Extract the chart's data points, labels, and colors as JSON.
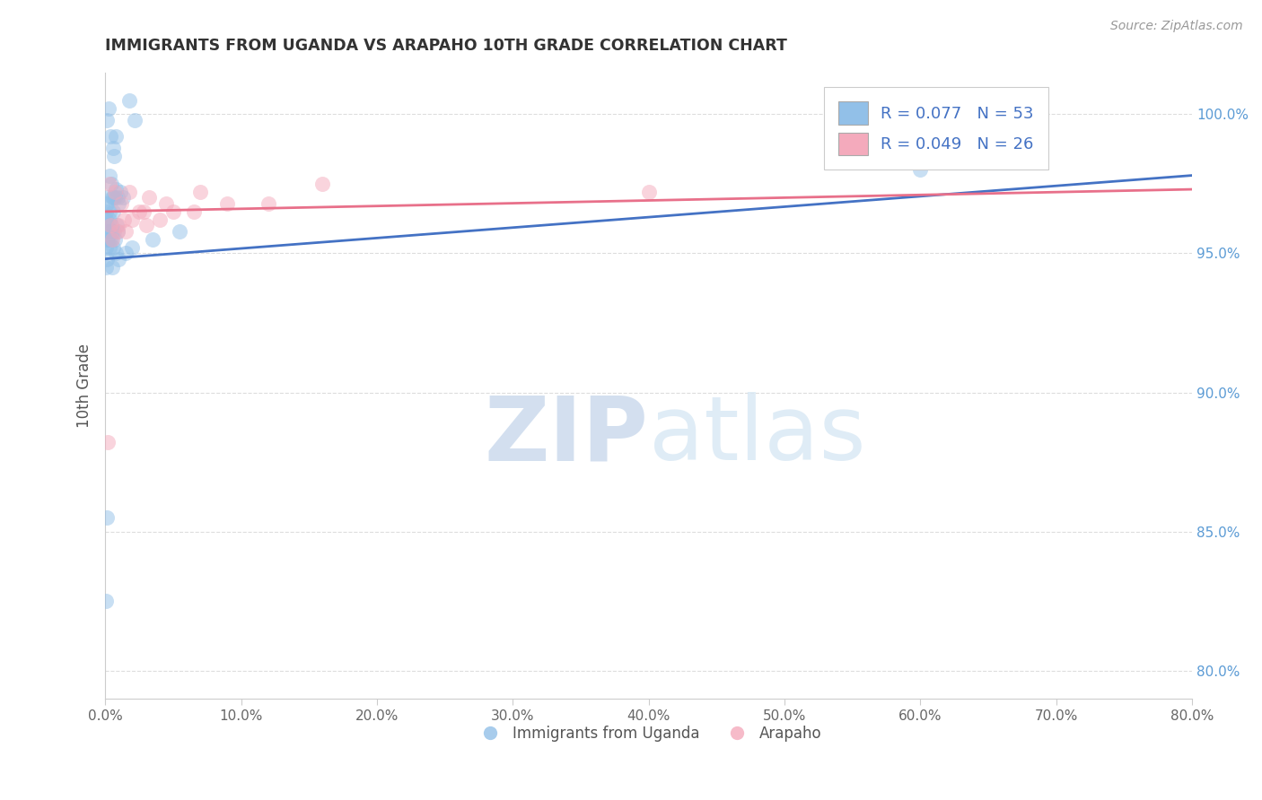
{
  "title": "IMMIGRANTS FROM UGANDA VS ARAPAHO 10TH GRADE CORRELATION CHART",
  "source_text": "Source: ZipAtlas.com",
  "ylabel": "10th Grade",
  "xlim": [
    0.0,
    80.0
  ],
  "ylim": [
    79.0,
    101.5
  ],
  "xticks": [
    0.0,
    10.0,
    20.0,
    30.0,
    40.0,
    50.0,
    60.0,
    70.0,
    80.0
  ],
  "yticks": [
    80.0,
    85.0,
    90.0,
    95.0,
    100.0
  ],
  "xtick_labels": [
    "0.0%",
    "10.0%",
    "20.0%",
    "30.0%",
    "40.0%",
    "50.0%",
    "60.0%",
    "70.0%",
    "80.0%"
  ],
  "ytick_labels": [
    "80.0%",
    "85.0%",
    "90.0%",
    "95.0%",
    "100.0%"
  ],
  "blue_scatter_x": [
    0.15,
    0.25,
    1.8,
    2.2,
    0.4,
    0.55,
    0.65,
    0.75,
    0.3,
    0.45,
    0.55,
    0.8,
    0.9,
    1.0,
    1.1,
    1.3,
    0.05,
    0.1,
    0.2,
    0.35,
    0.5,
    0.6,
    0.7,
    0.08,
    0.12,
    0.22,
    0.32,
    0.42,
    0.62,
    0.82,
    0.15,
    0.25,
    0.35,
    0.5,
    0.7,
    0.9,
    0.08,
    0.18,
    0.3,
    0.45,
    0.6,
    0.8,
    0.05,
    0.1,
    0.5,
    1.0,
    1.5,
    2.0,
    3.5,
    5.5,
    60.0,
    0.12,
    0.08
  ],
  "blue_scatter_y": [
    99.8,
    100.2,
    100.5,
    99.8,
    99.2,
    98.8,
    98.5,
    99.2,
    97.8,
    97.5,
    97.0,
    97.3,
    97.0,
    96.8,
    97.2,
    97.0,
    96.5,
    96.8,
    97.0,
    96.5,
    97.0,
    96.5,
    97.0,
    96.2,
    96.0,
    95.8,
    96.2,
    96.0,
    95.8,
    96.0,
    95.5,
    95.8,
    95.5,
    95.8,
    95.5,
    95.8,
    95.2,
    95.5,
    95.2,
    95.5,
    95.2,
    95.0,
    94.5,
    94.8,
    94.5,
    94.8,
    95.0,
    95.2,
    95.5,
    95.8,
    98.0,
    85.5,
    82.5
  ],
  "pink_scatter_x": [
    0.3,
    0.7,
    1.2,
    1.8,
    2.5,
    3.2,
    4.5,
    7.0,
    0.5,
    1.0,
    1.5,
    2.0,
    3.0,
    5.0,
    9.0,
    16.0,
    0.4,
    0.9,
    1.4,
    2.8,
    4.0,
    6.5,
    12.0,
    40.0,
    65.0,
    0.2
  ],
  "pink_scatter_y": [
    97.5,
    97.2,
    96.8,
    97.2,
    96.5,
    97.0,
    96.8,
    97.2,
    95.5,
    96.0,
    95.8,
    96.2,
    96.0,
    96.5,
    96.8,
    97.5,
    96.0,
    95.8,
    96.2,
    96.5,
    96.2,
    96.5,
    96.8,
    97.2,
    99.3,
    88.2
  ],
  "blue_line_x0": 0.0,
  "blue_line_y0": 94.8,
  "blue_line_x1": 80.0,
  "blue_line_y1": 97.8,
  "pink_line_x0": 0.0,
  "pink_line_y0": 96.5,
  "pink_line_x1": 80.0,
  "pink_line_y1": 97.3,
  "R_blue": 0.077,
  "N_blue": 53,
  "R_pink": 0.049,
  "N_pink": 26,
  "blue_scatter_color": "#92C0E8",
  "pink_scatter_color": "#F4AABC",
  "blue_line_color": "#4472C4",
  "pink_line_color": "#E8708A",
  "legend_label_blue": "Immigrants from Uganda",
  "legend_label_pink": "Arapaho",
  "watermark_zip": "ZIP",
  "watermark_atlas": "atlas",
  "background_color": "#FFFFFF",
  "grid_color": "#DDDDDD",
  "ytick_color": "#5B9BD5",
  "xtick_color": "#666666",
  "title_color": "#333333",
  "ylabel_color": "#555555",
  "source_color": "#999999"
}
